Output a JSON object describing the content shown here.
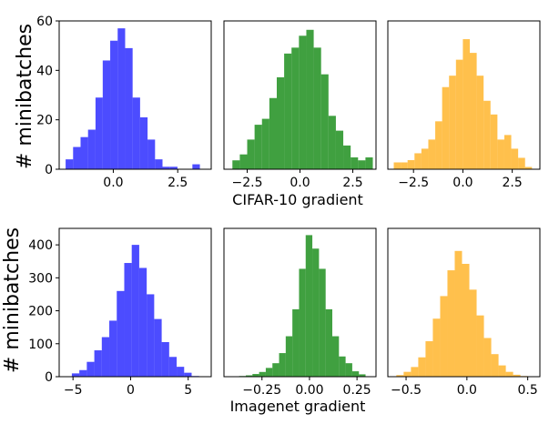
{
  "figure": {
    "row_ylabel": "# minibatches",
    "row_xlabels": [
      "CIFAR-10 gradient",
      "Imagenet gradient"
    ]
  },
  "chart_data": [
    {
      "type": "bar",
      "row": 0,
      "col": 0,
      "color": "#0000ff",
      "bar_opacity": 0.7,
      "xlim": [
        -2.1,
        3.8
      ],
      "ylim": [
        0,
        60
      ],
      "xticks": [
        0.0,
        2.5
      ],
      "xtick_labels": [
        "0.0",
        "2.5"
      ],
      "yticks": [
        0,
        20,
        40,
        60
      ],
      "ytick_labels": [
        "0",
        "20",
        "40",
        "60"
      ],
      "bin_edges": [
        -1.85,
        -1.56,
        -1.27,
        -0.98,
        -0.69,
        -0.41,
        -0.12,
        0.17,
        0.46,
        0.75,
        1.04,
        1.33,
        1.62,
        1.91,
        2.2,
        2.49,
        2.78,
        3.07,
        3.36
      ],
      "counts": [
        4,
        9,
        13,
        16,
        29,
        44,
        52,
        57,
        49,
        29,
        21,
        12,
        4,
        1,
        1,
        0,
        0,
        2
      ]
    },
    {
      "type": "bar",
      "row": 0,
      "col": 1,
      "color": "#008000",
      "bar_opacity": 0.75,
      "xlim": [
        -3.6,
        3.6
      ],
      "ylim": [
        0,
        50
      ],
      "xticks": [
        -2.5,
        0.0,
        2.5
      ],
      "xtick_labels": [
        "−2.5",
        "0.0",
        "2.5"
      ],
      "yticks": [],
      "ytick_labels": [],
      "bin_edges": [
        -3.2,
        -2.85,
        -2.5,
        -2.15,
        -1.8,
        -1.45,
        -1.1,
        -0.75,
        -0.4,
        -0.05,
        0.3,
        0.65,
        1.0,
        1.35,
        1.7,
        2.05,
        2.4,
        2.75,
        3.1,
        3.45
      ],
      "counts": [
        3,
        5,
        10,
        15,
        17,
        24,
        31,
        39,
        41,
        45,
        47,
        41,
        32,
        18,
        13,
        8,
        4,
        3,
        4
      ]
    },
    {
      "type": "bar",
      "row": 0,
      "col": 2,
      "color": "#ffa500",
      "bar_opacity": 0.7,
      "xlim": [
        -3.8,
        3.9
      ],
      "ylim": [
        0,
        65
      ],
      "xticks": [
        -2.5,
        0.0,
        2.5
      ],
      "xtick_labels": [
        "−2.5",
        "0.0",
        "2.5"
      ],
      "yticks": [],
      "ytick_labels": [],
      "bin_edges": [
        -3.5,
        -3.15,
        -2.8,
        -2.45,
        -2.1,
        -1.75,
        -1.4,
        -1.05,
        -0.7,
        -0.35,
        0.0,
        0.35,
        0.7,
        1.05,
        1.4,
        1.75,
        2.1,
        2.45,
        2.8,
        3.15,
        3.5
      ],
      "counts": [
        3,
        3,
        4,
        7,
        9,
        13,
        21,
        36,
        41,
        48,
        57,
        51,
        41,
        30,
        24,
        13,
        15,
        9,
        5,
        1
      ]
    },
    {
      "type": "bar",
      "row": 1,
      "col": 0,
      "color": "#0000ff",
      "bar_opacity": 0.7,
      "xlim": [
        -6.2,
        7.0
      ],
      "ylim": [
        0,
        450
      ],
      "xticks": [
        -5,
        0,
        5
      ],
      "xtick_labels": [
        "−5",
        "0",
        "5"
      ],
      "yticks": [
        0,
        100,
        200,
        300,
        400
      ],
      "ytick_labels": [
        "0",
        "100",
        "200",
        "300",
        "400"
      ],
      "bin_edges": [
        -5.1,
        -4.45,
        -3.8,
        -3.15,
        -2.5,
        -1.85,
        -1.2,
        -0.55,
        0.1,
        0.75,
        1.4,
        2.05,
        2.7,
        3.35,
        4.0,
        4.65,
        5.3,
        5.95
      ],
      "counts": [
        10,
        20,
        45,
        80,
        120,
        170,
        260,
        345,
        400,
        330,
        250,
        175,
        105,
        60,
        30,
        12,
        2
      ]
    },
    {
      "type": "bar",
      "row": 1,
      "col": 1,
      "color": "#008000",
      "bar_opacity": 0.75,
      "xlim": [
        -0.45,
        0.35
      ],
      "ylim": [
        0,
        440
      ],
      "xticks": [
        -0.25,
        0.0,
        0.25
      ],
      "xtick_labels": [
        "−0.25",
        "0.00",
        "0.25"
      ],
      "yticks": [],
      "ytick_labels": [],
      "bin_edges": [
        -0.37,
        -0.335,
        -0.3,
        -0.265,
        -0.23,
        -0.195,
        -0.16,
        -0.125,
        -0.09,
        -0.055,
        -0.02,
        0.015,
        0.05,
        0.085,
        0.12,
        0.155,
        0.19,
        0.225,
        0.26,
        0.295
      ],
      "counts": [
        2,
        4,
        8,
        14,
        26,
        40,
        70,
        120,
        200,
        320,
        420,
        380,
        320,
        200,
        120,
        60,
        40,
        16,
        7
      ]
    },
    {
      "type": "bar",
      "row": 1,
      "col": 2,
      "color": "#ffa500",
      "bar_opacity": 0.7,
      "xlim": [
        -0.65,
        0.6
      ],
      "ylim": [
        0,
        460
      ],
      "xticks": [
        -0.5,
        0.0,
        0.5
      ],
      "xtick_labels": [
        "−0.5",
        "0.0",
        "0.5"
      ],
      "yticks": [],
      "ytick_labels": [],
      "bin_edges": [
        -0.58,
        -0.52,
        -0.46,
        -0.4,
        -0.34,
        -0.28,
        -0.22,
        -0.16,
        -0.1,
        -0.04,
        0.02,
        0.08,
        0.14,
        0.2,
        0.26,
        0.32,
        0.38,
        0.44,
        0.5
      ],
      "counts": [
        5,
        15,
        30,
        60,
        110,
        180,
        250,
        330,
        390,
        350,
        270,
        190,
        120,
        70,
        35,
        15,
        6,
        2
      ]
    }
  ]
}
